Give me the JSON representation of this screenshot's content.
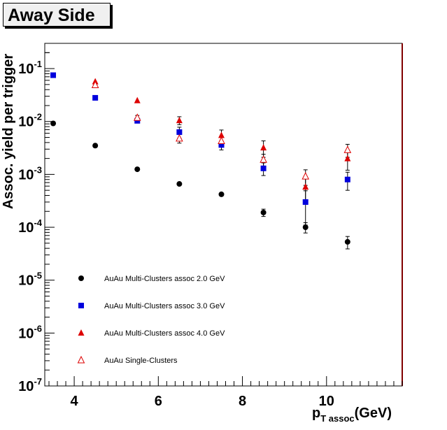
{
  "chart_data": {
    "type": "scatter",
    "title": "Away Side",
    "xlabel": {
      "main": "p",
      "sub": "T assoc",
      "unit": "(GeV)"
    },
    "ylabel": "Assoc. yield per trigger",
    "xlim": [
      3.3,
      11.8
    ],
    "ylim": [
      1e-07,
      0.3
    ],
    "y_scale": "log",
    "grid": false,
    "legend_position": "bottom-left",
    "x_ticks": [
      4,
      6,
      8,
      10
    ],
    "y_ticks": [
      {
        "value": 1e-07,
        "base": "10",
        "exp": "-7"
      },
      {
        "value": 1e-06,
        "base": "10",
        "exp": "-6"
      },
      {
        "value": 1e-05,
        "base": "10",
        "exp": "-5"
      },
      {
        "value": 0.0001,
        "base": "10",
        "exp": "-4"
      },
      {
        "value": 0.001,
        "base": "10",
        "exp": "-3"
      },
      {
        "value": 0.01,
        "base": "10",
        "exp": "-2"
      },
      {
        "value": 0.1,
        "base": "10",
        "exp": "-1"
      }
    ],
    "series": [
      {
        "name": "AuAu Multi-Clusters assoc 2.0 GeV",
        "marker": "circle",
        "color": "#000000",
        "x": [
          3.5,
          4.5,
          5.5,
          6.5,
          7.5,
          8.5,
          9.5,
          10.5
        ],
        "y": [
          0.0092,
          0.0035,
          0.00125,
          0.00066,
          0.00042,
          0.00019,
          0.0001,
          5.3e-05
        ],
        "err_lo": [
          0,
          0,
          0,
          0,
          0,
          3e-05,
          2.2e-05,
          1.4e-05
        ],
        "err_hi": [
          0,
          0,
          0,
          0,
          0,
          3e-05,
          2.2e-05,
          1.4e-05
        ]
      },
      {
        "name": "AuAu Multi-Clusters assoc 3.0 GeV",
        "marker": "square",
        "color": "#0000dd",
        "x": [
          3.5,
          4.5,
          5.5,
          6.5,
          7.5,
          8.5,
          9.5,
          10.5
        ],
        "y": [
          0.075,
          0.028,
          0.0103,
          0.0063,
          0.0036,
          0.0013,
          0.0003,
          0.0008
        ],
        "err_lo": [
          0,
          0,
          0.0008,
          0.0015,
          0.0007,
          0.00035,
          0.00019,
          0.0003
        ],
        "err_hi": [
          0,
          0,
          0.0008,
          0.0015,
          0.0007,
          0.00035,
          0.00019,
          0.0003
        ]
      },
      {
        "name": "AuAu Multi-Clusters assoc 4.0 GeV",
        "marker": "triangle",
        "color": "#dd0000",
        "x": [
          4.5,
          5.5,
          6.5,
          7.5,
          8.5,
          9.5,
          10.5
        ],
        "y": [
          0.057,
          0.025,
          0.0105,
          0.0055,
          0.0032,
          0.00058,
          0.002
        ],
        "err_lo": [
          0,
          0,
          0.0018,
          0.0014,
          0.0011,
          0.00028,
          0.0008
        ],
        "err_hi": [
          0,
          0,
          0.0018,
          0.0014,
          0.0011,
          0.00028,
          0.0008
        ]
      },
      {
        "name": "AuAu Single-Clusters",
        "marker": "triangle-open",
        "color": "#dd0000",
        "x": [
          4.5,
          5.5,
          6.5,
          7.5,
          8.5,
          9.5,
          10.5
        ],
        "y": [
          0.049,
          0.0118,
          0.0048,
          0.0043,
          0.0019,
          0.00092,
          0.0029
        ],
        "err_lo": [
          0,
          0.0012,
          0.0009,
          0.001,
          0.0005,
          0.0003,
          0.0008
        ],
        "err_hi": [
          0,
          0.0012,
          0.0009,
          0.001,
          0.0005,
          0.0003,
          0.0008
        ]
      }
    ]
  }
}
